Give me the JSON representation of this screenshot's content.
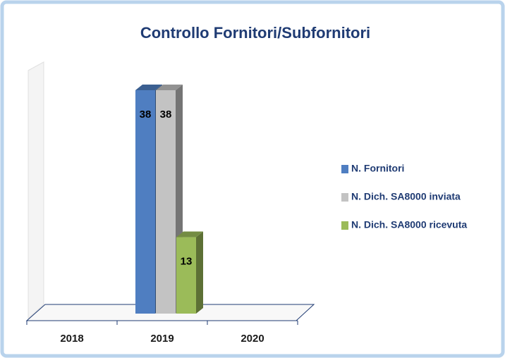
{
  "chart_data": {
    "type": "bar3d",
    "title": "Controllo Fornitori/Subfornitori",
    "categories": [
      "2018",
      "2019",
      "2020"
    ],
    "series": [
      {
        "name": "N. Fornitori",
        "color": "#4f7ec1",
        "values": [
          null,
          38,
          null
        ]
      },
      {
        "name": "N. Dich. SA8000 inviata",
        "color": "#c3c3c3",
        "values": [
          null,
          38,
          null
        ]
      },
      {
        "name": "N. Dich. SA8000 ricevuta",
        "color": "#9bbb59",
        "values": [
          null,
          13,
          null
        ]
      }
    ],
    "legend": "right"
  }
}
